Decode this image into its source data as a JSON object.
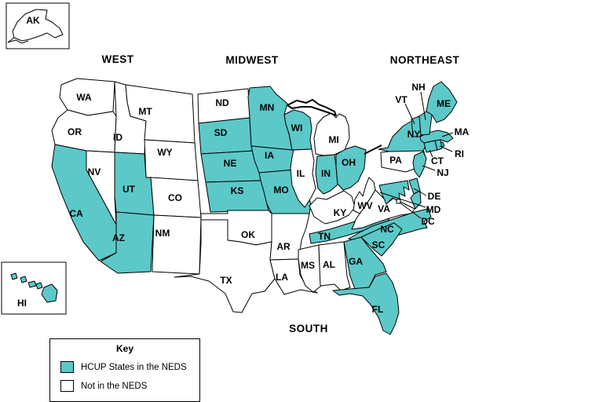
{
  "colors": {
    "in": "#5CC8C8",
    "out": "#FFFFFF",
    "border": "#000000",
    "text": "#000000"
  },
  "legend": {
    "title": "Key",
    "items": [
      {
        "label": "HCUP States in the NEDS",
        "status": "in"
      },
      {
        "label": "Not in the NEDS",
        "status": "out"
      }
    ]
  },
  "regions": [
    {
      "id": "west",
      "label": "WEST"
    },
    {
      "id": "midwest",
      "label": "MIDWEST"
    },
    {
      "id": "northeast",
      "label": "NORTHEAST"
    },
    {
      "id": "south",
      "label": "SOUTH"
    }
  ],
  "states": [
    {
      "abbr": "AK",
      "status": "out"
    },
    {
      "abbr": "HI",
      "status": "in"
    },
    {
      "abbr": "WA",
      "status": "out"
    },
    {
      "abbr": "OR",
      "status": "out"
    },
    {
      "abbr": "CA",
      "status": "in"
    },
    {
      "abbr": "NV",
      "status": "out"
    },
    {
      "abbr": "ID",
      "status": "out"
    },
    {
      "abbr": "MT",
      "status": "out"
    },
    {
      "abbr": "WY",
      "status": "out"
    },
    {
      "abbr": "UT",
      "status": "in"
    },
    {
      "abbr": "CO",
      "status": "out"
    },
    {
      "abbr": "AZ",
      "status": "in"
    },
    {
      "abbr": "NM",
      "status": "out"
    },
    {
      "abbr": "ND",
      "status": "out"
    },
    {
      "abbr": "SD",
      "status": "in"
    },
    {
      "abbr": "NE",
      "status": "in"
    },
    {
      "abbr": "KS",
      "status": "in"
    },
    {
      "abbr": "OK",
      "status": "out"
    },
    {
      "abbr": "TX",
      "status": "out"
    },
    {
      "abbr": "MN",
      "status": "in"
    },
    {
      "abbr": "IA",
      "status": "in"
    },
    {
      "abbr": "MO",
      "status": "in"
    },
    {
      "abbr": "AR",
      "status": "out"
    },
    {
      "abbr": "LA",
      "status": "out"
    },
    {
      "abbr": "WI",
      "status": "in"
    },
    {
      "abbr": "IL",
      "status": "out"
    },
    {
      "abbr": "MI",
      "status": "out"
    },
    {
      "abbr": "IN",
      "status": "in"
    },
    {
      "abbr": "OH",
      "status": "in"
    },
    {
      "abbr": "KY",
      "status": "out"
    },
    {
      "abbr": "TN",
      "status": "in"
    },
    {
      "abbr": "MS",
      "status": "out"
    },
    {
      "abbr": "AL",
      "status": "out"
    },
    {
      "abbr": "WV",
      "status": "out"
    },
    {
      "abbr": "VA",
      "status": "out"
    },
    {
      "abbr": "NC",
      "status": "in"
    },
    {
      "abbr": "SC",
      "status": "in"
    },
    {
      "abbr": "GA",
      "status": "in"
    },
    {
      "abbr": "FL",
      "status": "in"
    },
    {
      "abbr": "PA",
      "status": "out"
    },
    {
      "abbr": "NY",
      "status": "in"
    },
    {
      "abbr": "NJ",
      "status": "in"
    },
    {
      "abbr": "CT",
      "status": "in"
    },
    {
      "abbr": "RI",
      "status": "in"
    },
    {
      "abbr": "MA",
      "status": "in"
    },
    {
      "abbr": "VT",
      "status": "in"
    },
    {
      "abbr": "NH",
      "status": "in"
    },
    {
      "abbr": "ME",
      "status": "in"
    },
    {
      "abbr": "DE",
      "status": "in"
    },
    {
      "abbr": "MD",
      "status": "in"
    },
    {
      "abbr": "DC",
      "status": "out"
    }
  ]
}
